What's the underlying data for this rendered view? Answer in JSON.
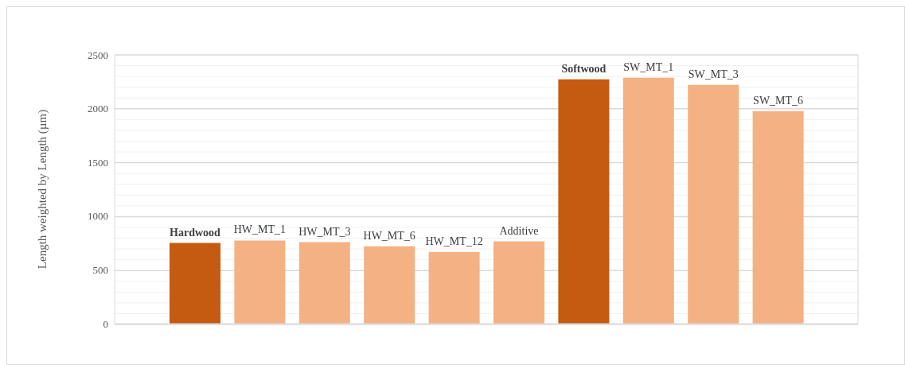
{
  "chart_data": {
    "type": "bar",
    "ylabel": "Length weighted by Length  (µm)",
    "categories": [
      "Hardwood",
      "HW_MT_1",
      "HW_MT_3",
      "HW_MT_6",
      "HW_MT_12",
      "Additive",
      "Softwood",
      "SW_MT_1",
      "SW_MT_3",
      "SW_MT_6"
    ],
    "values": [
      750,
      773,
      758,
      720,
      667,
      765,
      2273,
      2288,
      2220,
      1977
    ],
    "colors": [
      "#c55a11",
      "#f4b183",
      "#f4b183",
      "#f4b183",
      "#f4b183",
      "#f4b183",
      "#c55a11",
      "#f4b183",
      "#f4b183",
      "#f4b183"
    ],
    "ylim": [
      0,
      2500
    ],
    "yticks": [
      0,
      {
        "value": 100,
        "label": null
      },
      {
        "value": 200,
        "label": null
      },
      {
        "value": 300,
        "label": null
      },
      {
        "value": 400,
        "label": null
      },
      500,
      {
        "value": 600,
        "label": null
      },
      {
        "value": 700,
        "label": null
      },
      {
        "value": 800,
        "label": null
      },
      {
        "value": 900,
        "label": null
      },
      1000,
      {
        "value": 1100,
        "label": null
      },
      {
        "value": 1200,
        "label": null
      },
      {
        "value": 1300,
        "label": null
      },
      {
        "value": 1400,
        "label": null
      },
      1500,
      {
        "value": 1600,
        "label": null
      },
      {
        "value": 1700,
        "label": null
      },
      {
        "value": 1800,
        "label": null
      },
      {
        "value": 1900,
        "label": null
      },
      2000,
      {
        "value": 2100,
        "label": null
      },
      {
        "value": 2200,
        "label": null
      },
      {
        "value": 2300,
        "label": null
      },
      {
        "value": 2400,
        "label": null
      },
      2500
    ],
    "grid": "y",
    "tick_labels": "y",
    "legend": false
  }
}
